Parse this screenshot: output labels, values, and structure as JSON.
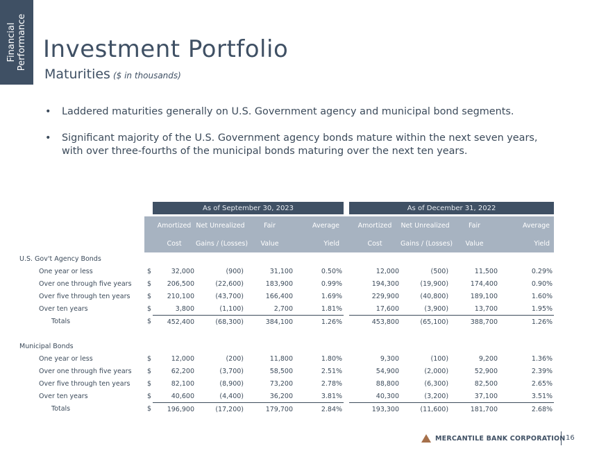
{
  "side_tab": {
    "line1": "Financial",
    "line2": "Performance"
  },
  "title": "Investment Portfolio",
  "subtitle": "Maturities",
  "subtitle_note": "($ in thousands)",
  "bullets": [
    "Laddered maturities generally on U.S. Government agency and municipal bond segments.",
    "Significant majority of the U.S. Government agency bonds mature within the next seven years, with over three-fourths of the municipal bonds maturing over the next ten years."
  ],
  "table": {
    "group_headers": [
      "As of September 30, 2023",
      "As of December 31, 2022"
    ],
    "col_headers_top": [
      "Amortized",
      "Net Unrealized",
      "Fair",
      "Average"
    ],
    "col_headers_bottom": [
      "Cost",
      "Gains / (Losses)",
      "Value",
      "Yield"
    ],
    "currency": "$",
    "sections": [
      {
        "label": "U.S. Gov't Agency Bonds",
        "rows": [
          {
            "label": "One year or less",
            "v": [
              "32,000",
              "(900)",
              "31,100",
              "0.50%",
              "12,000",
              "(500)",
              "11,500",
              "0.29%"
            ]
          },
          {
            "label": "Over one through five years",
            "v": [
              "206,500",
              "(22,600)",
              "183,900",
              "0.99%",
              "194,300",
              "(19,900)",
              "174,400",
              "0.90%"
            ]
          },
          {
            "label": "Over five through ten years",
            "v": [
              "210,100",
              "(43,700)",
              "166,400",
              "1.69%",
              "229,900",
              "(40,800)",
              "189,100",
              "1.60%"
            ]
          },
          {
            "label": "Over ten years",
            "v": [
              "3,800",
              "(1,100)",
              "2,700",
              "1.81%",
              "17,600",
              "(3,900)",
              "13,700",
              "1.95%"
            ]
          }
        ],
        "total": {
          "label": "Totals",
          "v": [
            "452,400",
            "(68,300)",
            "384,100",
            "1.26%",
            "453,800",
            "(65,100)",
            "388,700",
            "1.26%"
          ]
        }
      },
      {
        "label": "Municipal Bonds",
        "rows": [
          {
            "label": "One year or less",
            "v": [
              "12,000",
              "(200)",
              "11,800",
              "1.80%",
              "9,300",
              "(100)",
              "9,200",
              "1.36%"
            ]
          },
          {
            "label": "Over one through five years",
            "v": [
              "62,200",
              "(3,700)",
              "58,500",
              "2.51%",
              "54,900",
              "(2,000)",
              "52,900",
              "2.39%"
            ]
          },
          {
            "label": "Over five through ten years",
            "v": [
              "82,100",
              "(8,900)",
              "73,200",
              "2.78%",
              "88,800",
              "(6,300)",
              "82,500",
              "2.65%"
            ]
          },
          {
            "label": "Over ten years",
            "v": [
              "40,600",
              "(4,400)",
              "36,200",
              "3.81%",
              "40,300",
              "(3,200)",
              "37,100",
              "3.51%"
            ]
          }
        ],
        "total": {
          "label": "Totals",
          "v": [
            "196,900",
            "(17,200)",
            "179,700",
            "2.84%",
            "193,300",
            "(11,600)",
            "181,700",
            "2.68%"
          ]
        }
      }
    ]
  },
  "footer": {
    "company": "MERCANTILE BANK CORPORATION",
    "page": "16"
  },
  "colors": {
    "navy": "#3f5064",
    "header_gray": "#a7b3c1",
    "logo_accent": "#a6704a"
  }
}
